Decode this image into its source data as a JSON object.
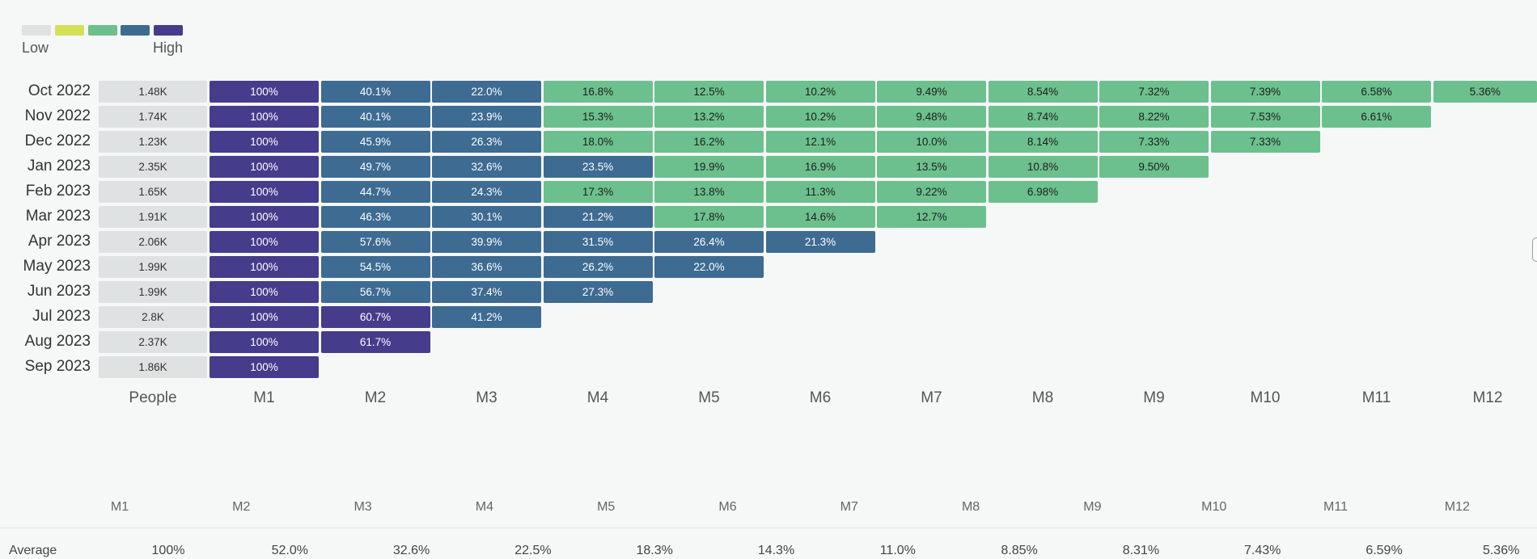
{
  "legend": {
    "low_label": "Low",
    "high_label": "High",
    "colors": [
      "#dfe2e3",
      "#d4e157",
      "#6cc08d",
      "#3d6b92",
      "#453c8c"
    ]
  },
  "chart_data": {
    "type": "heatmap",
    "people_header": "People",
    "columns": [
      "M1",
      "M2",
      "M3",
      "M4",
      "M5",
      "M6",
      "M7",
      "M8",
      "M9",
      "M10",
      "M11",
      "M12"
    ],
    "rows": [
      {
        "label": "Oct 2022",
        "people": "1.48K",
        "values": [
          "100%",
          "40.1%",
          "22.0%",
          "16.8%",
          "12.5%",
          "10.2%",
          "9.49%",
          "8.54%",
          "7.32%",
          "7.39%",
          "6.58%",
          "5.36%"
        ]
      },
      {
        "label": "Nov 2022",
        "people": "1.74K",
        "values": [
          "100%",
          "40.1%",
          "23.9%",
          "15.3%",
          "13.2%",
          "10.2%",
          "9.48%",
          "8.74%",
          "8.22%",
          "7.53%",
          "6.61%"
        ]
      },
      {
        "label": "Dec 2022",
        "people": "1.23K",
        "values": [
          "100%",
          "45.9%",
          "26.3%",
          "18.0%",
          "16.2%",
          "12.1%",
          "10.0%",
          "8.14%",
          "7.33%",
          "7.33%"
        ]
      },
      {
        "label": "Jan 2023",
        "people": "2.35K",
        "values": [
          "100%",
          "49.7%",
          "32.6%",
          "23.5%",
          "19.9%",
          "16.9%",
          "13.5%",
          "10.8%",
          "9.50%"
        ]
      },
      {
        "label": "Feb 2023",
        "people": "1.65K",
        "values": [
          "100%",
          "44.7%",
          "24.3%",
          "17.3%",
          "13.8%",
          "11.3%",
          "9.22%",
          "6.98%"
        ]
      },
      {
        "label": "Mar 2023",
        "people": "1.91K",
        "values": [
          "100%",
          "46.3%",
          "30.1%",
          "21.2%",
          "17.8%",
          "14.6%",
          "12.7%"
        ]
      },
      {
        "label": "Apr 2023",
        "people": "2.06K",
        "values": [
          "100%",
          "57.6%",
          "39.9%",
          "31.5%",
          "26.4%",
          "21.3%"
        ]
      },
      {
        "label": "May 2023",
        "people": "1.99K",
        "values": [
          "100%",
          "54.5%",
          "36.6%",
          "26.2%",
          "22.0%"
        ]
      },
      {
        "label": "Jun 2023",
        "people": "1.99K",
        "values": [
          "100%",
          "56.7%",
          "37.4%",
          "27.3%"
        ]
      },
      {
        "label": "Jul 2023",
        "people": "2.8K",
        "values": [
          "100%",
          "60.7%",
          "41.2%"
        ]
      },
      {
        "label": "Aug 2023",
        "people": "2.37K",
        "values": [
          "100%",
          "61.7%"
        ]
      },
      {
        "label": "Sep 2023",
        "people": "1.86K",
        "values": [
          "100%"
        ]
      }
    ],
    "color_bins": [
      {
        "min": 60,
        "color": "#453c8c",
        "text": "#ffffff"
      },
      {
        "min": 19,
        "color": "#3d6b92",
        "text": "#ffffff"
      },
      {
        "min": 0,
        "color": "#6cc08d",
        "text": "#1e1e1e"
      }
    ],
    "overrides": [
      {
        "row": 3,
        "col": 4,
        "color": "#6cc08d",
        "text": "#1e1e1e"
      }
    ],
    "average": {
      "label": "Average",
      "columns": [
        "M1",
        "M2",
        "M3",
        "M4",
        "M5",
        "M6",
        "M7",
        "M8",
        "M9",
        "M10",
        "M11",
        "M12"
      ],
      "values": [
        "100%",
        "52.0%",
        "32.6%",
        "22.5%",
        "18.3%",
        "14.3%",
        "11.0%",
        "8.85%",
        "8.31%",
        "7.43%",
        "6.59%",
        "5.36%"
      ]
    }
  }
}
